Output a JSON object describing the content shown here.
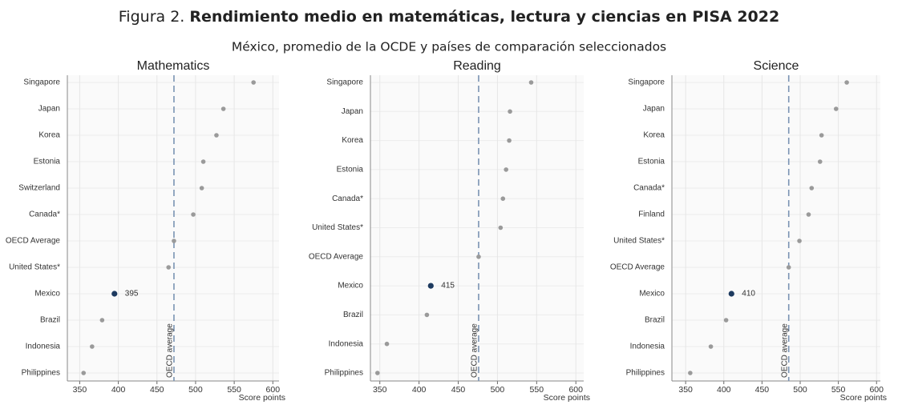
{
  "figure_label": "Figura 2.",
  "title": "Rendimiento medio en matemáticas, lectura y ciencias en PISA 2022",
  "subtitle": "México, promedio de la OCDE y países de comparación seleccionados",
  "chart_data": [
    {
      "type": "dot",
      "title": "Mathematics",
      "categories": [
        "Singapore",
        "Japan",
        "Korea",
        "Estonia",
        "Switzerland",
        "Canada*",
        "OECD Average",
        "United States*",
        "Mexico",
        "Brazil",
        "Indonesia",
        "Philippines"
      ],
      "values": [
        575,
        536,
        527,
        510,
        508,
        497,
        472,
        465,
        395,
        379,
        366,
        355
      ],
      "value_labels": [
        null,
        null,
        null,
        null,
        null,
        null,
        null,
        null,
        "395",
        null,
        null,
        null
      ],
      "colors": [
        "#9a9a9a",
        "#9a9a9a",
        "#9a9a9a",
        "#9a9a9a",
        "#9a9a9a",
        "#9a9a9a",
        "#9a9a9a",
        "#9a9a9a",
        "#1d3a5f",
        "#9a9a9a",
        "#9a9a9a",
        "#9a9a9a"
      ],
      "xlabel": "Score points",
      "xlim": [
        334,
        608
      ],
      "xticks": [
        350,
        400,
        450,
        500,
        550,
        600
      ],
      "ref_line": {
        "value": 472,
        "label": "OECD average",
        "color": "#7a93b3"
      },
      "grid": true
    },
    {
      "type": "dot",
      "title": "Reading",
      "categories": [
        "Singapore",
        "Japan",
        "Korea",
        "Estonia",
        "Canada*",
        "United States*",
        "OECD Average",
        "Mexico",
        "Brazil",
        "Indonesia",
        "Philippines"
      ],
      "values": [
        543,
        516,
        515,
        511,
        507,
        504,
        476,
        415,
        410,
        359,
        347
      ],
      "value_labels": [
        null,
        null,
        null,
        null,
        null,
        null,
        null,
        "415",
        null,
        null,
        null
      ],
      "colors": [
        "#9a9a9a",
        "#9a9a9a",
        "#9a9a9a",
        "#9a9a9a",
        "#9a9a9a",
        "#9a9a9a",
        "#9a9a9a",
        "#1d3a5f",
        "#9a9a9a",
        "#9a9a9a",
        "#9a9a9a"
      ],
      "xlabel": "Score points",
      "xlim": [
        338,
        610
      ],
      "xticks": [
        350,
        400,
        450,
        500,
        550,
        600
      ],
      "ref_line": {
        "value": 476,
        "label": "OECD average",
        "color": "#7a93b3"
      },
      "grid": true
    },
    {
      "type": "dot",
      "title": "Science",
      "categories": [
        "Singapore",
        "Japan",
        "Korea",
        "Estonia",
        "Canada*",
        "Finland",
        "United States*",
        "OECD Average",
        "Mexico",
        "Brazil",
        "Indonesia",
        "Philippines"
      ],
      "values": [
        561,
        547,
        528,
        526,
        515,
        511,
        499,
        485,
        410,
        403,
        383,
        356
      ],
      "value_labels": [
        null,
        null,
        null,
        null,
        null,
        null,
        null,
        null,
        "410",
        null,
        null,
        null
      ],
      "colors": [
        "#9a9a9a",
        "#9a9a9a",
        "#9a9a9a",
        "#9a9a9a",
        "#9a9a9a",
        "#9a9a9a",
        "#9a9a9a",
        "#9a9a9a",
        "#1d3a5f",
        "#9a9a9a",
        "#9a9a9a",
        "#9a9a9a"
      ],
      "xlabel": "Score points",
      "xlim": [
        332,
        605
      ],
      "xticks": [
        350,
        400,
        450,
        500,
        550,
        600
      ],
      "ref_line": {
        "value": 485,
        "label": "OECD average",
        "color": "#7a93b3"
      },
      "grid": true
    }
  ]
}
